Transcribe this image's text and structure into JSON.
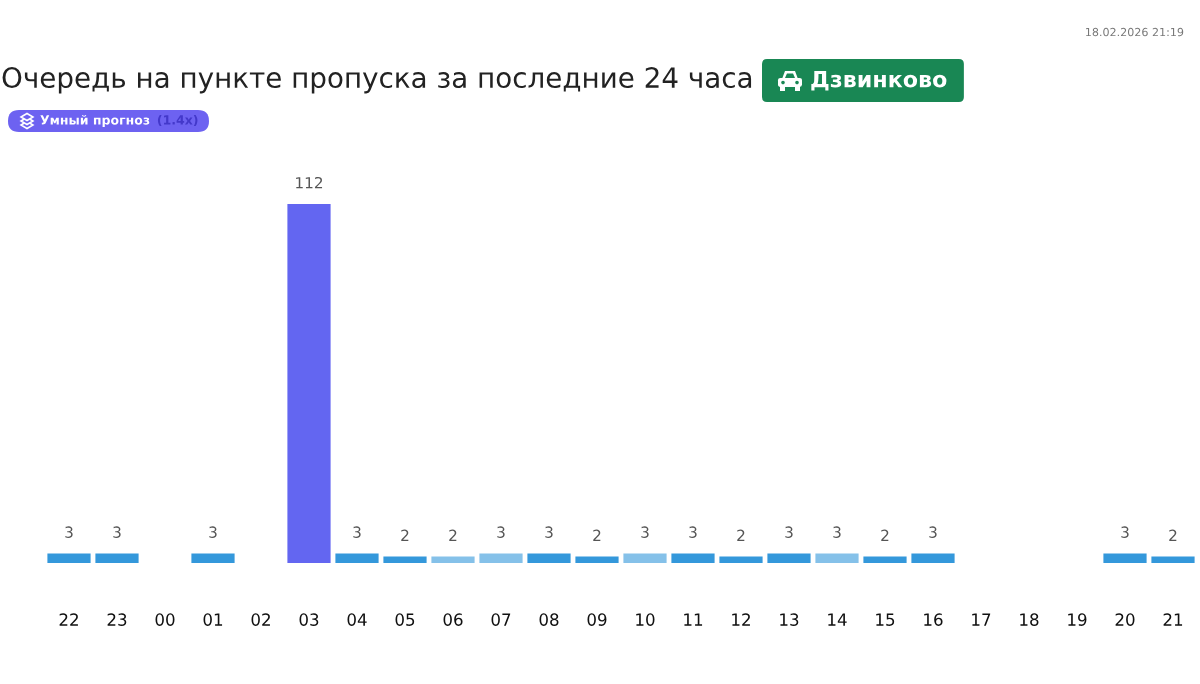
{
  "chart_data": {
    "type": "bar",
    "title": "Очередь на пункте пропуска за последние 24 часа",
    "subtitle": "Дзвинково",
    "annotations": [
      "18.02.2026 21:19",
      "Умный прогноз",
      "(1.4x)"
    ],
    "categories": [
      "22",
      "23",
      "00",
      "01",
      "02",
      "03",
      "04",
      "05",
      "06",
      "07",
      "08",
      "09",
      "10",
      "11",
      "12",
      "13",
      "14",
      "15",
      "16",
      "17",
      "18",
      "19",
      "20",
      "21"
    ],
    "values": [
      3,
      3,
      null,
      3,
      null,
      112,
      3,
      2,
      2,
      3,
      3,
      2,
      3,
      3,
      2,
      3,
      3,
      2,
      3,
      null,
      null,
      null,
      3,
      2
    ],
    "colors": [
      "#3498db",
      "#3498db",
      null,
      "#3498db",
      null,
      "#6366f1",
      "#3498db",
      "#3498db",
      "#85c1e9",
      "#85c1e9",
      "#3498db",
      "#3498db",
      "#85c1e9",
      "#3498db",
      "#3498db",
      "#3498db",
      "#85c1e9",
      "#3498db",
      "#3498db",
      null,
      null,
      null,
      "#3498db",
      "#3498db"
    ],
    "tick_labels": "x",
    "data_labels": true
  }
}
